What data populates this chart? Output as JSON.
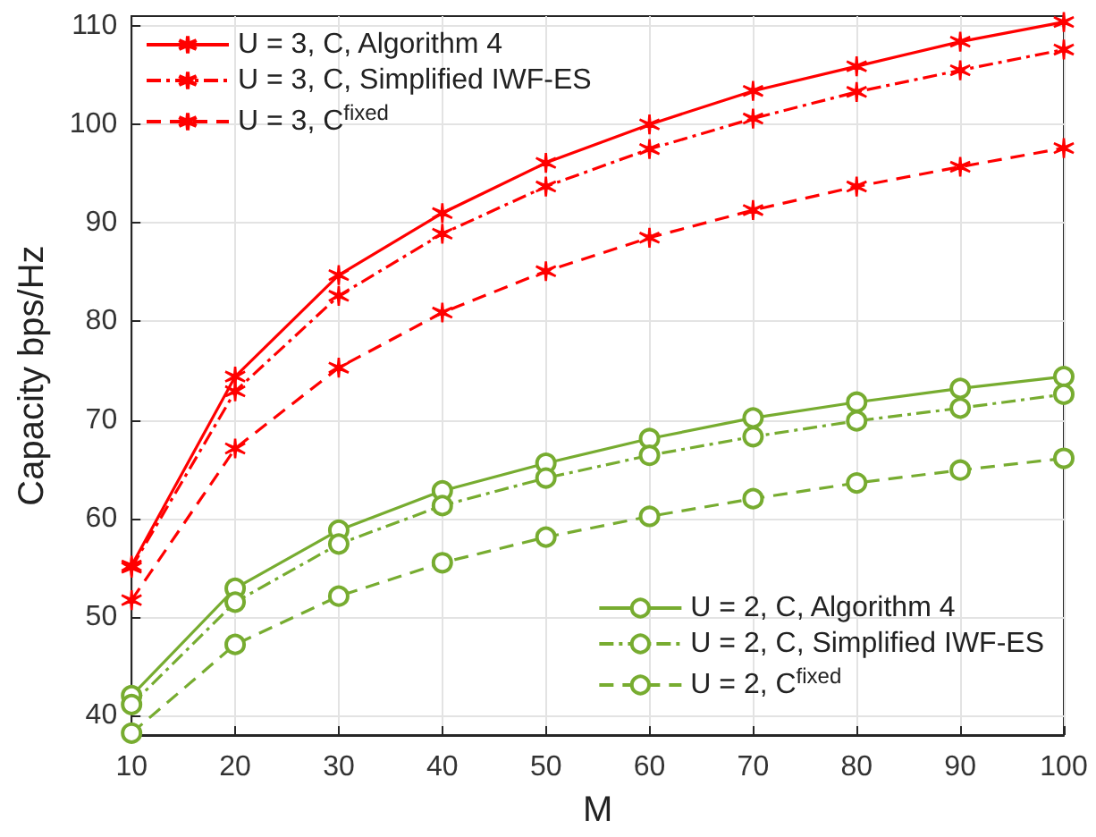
{
  "chart_data": {
    "type": "line",
    "xlabel": "M",
    "ylabel": "Capacity bps/Hz",
    "x": [
      10,
      20,
      30,
      40,
      50,
      60,
      70,
      80,
      90,
      100
    ],
    "xlim": [
      10,
      100
    ],
    "xticks": [
      10,
      20,
      30,
      40,
      50,
      60,
      70,
      80,
      90,
      100
    ],
    "ylim": [
      38,
      111
    ],
    "yticks": [
      40,
      50,
      60,
      70,
      80,
      90,
      100,
      110
    ],
    "grid": true,
    "legend": "top left",
    "series": [
      {
        "name": "U = 3, C, Algorithm 4",
        "color": "#ff0000",
        "marker": "cross",
        "line_style": "solid",
        "values": [
          55.2,
          74.4,
          84.7,
          91,
          96.1,
          100,
          103.4,
          105.9,
          108.4,
          110.4
        ]
      },
      {
        "name": "U = 3, C, Simplified IWF-ES",
        "color": "#ff0000",
        "marker": "cross",
        "line_style": "dashdot",
        "values": [
          55,
          72.9,
          82.6,
          88.9,
          93.7,
          97.5,
          100.6,
          103.3,
          105.5,
          107.6
        ]
      },
      {
        "name": "U = 3, C$^{fixed}$",
        "color": "#ff0000",
        "marker": "cross",
        "line_style": "dashed",
        "values": [
          51.7,
          67.1,
          75.3,
          80.9,
          85.1,
          88.5,
          91.3,
          93.7,
          95.7,
          97.6
        ]
      },
      {
        "name": "U = 2, C, Algorithm 4",
        "color": "#77ac30",
        "marker": "circle",
        "line_style": "solid",
        "values": [
          42,
          52.9,
          58.8,
          62.8,
          65.6,
          68.1,
          70.2,
          71.8,
          73.2,
          74.4
        ]
      },
      {
        "name": "U = 2, C, Simplified IWF-ES",
        "color": "#77ac30",
        "marker": "circle",
        "line_style": "dashdot",
        "values": [
          41.1,
          51.5,
          57.4,
          61.3,
          64.1,
          66.4,
          68.3,
          69.9,
          71.2,
          72.6
        ]
      },
      {
        "name": "U = 2, C$^{fixed}$",
        "color": "#77ac30",
        "marker": "circle",
        "line_style": "dashed",
        "values": [
          38.2,
          47.2,
          52.1,
          55.5,
          58.1,
          60.2,
          62,
          63.6,
          64.9,
          66.1
        ]
      }
    ]
  }
}
